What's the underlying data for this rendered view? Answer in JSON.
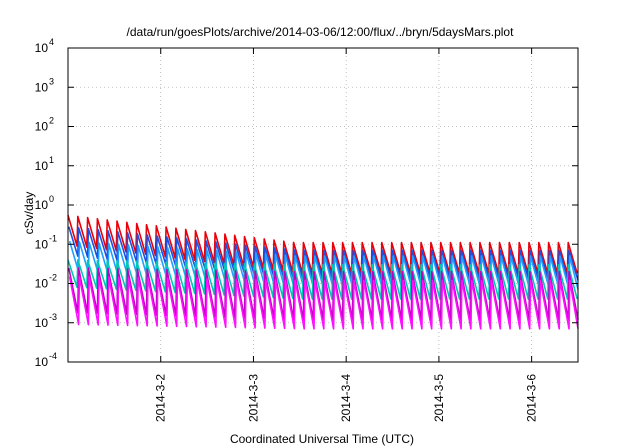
{
  "chart_data": {
    "type": "line",
    "title": "/data/run/goesPlots/archive/2014-03-06/12:00/flux/../bryn/5daysMars.plot",
    "xlabel": "Coordinated Universal Time (UTC)",
    "ylabel": "cSv/day",
    "yscale": "log",
    "ylim": [
      0.0001,
      10000
    ],
    "y_ticks": [
      {
        "base": "10",
        "exp": "-4"
      },
      {
        "base": "10",
        "exp": "-3"
      },
      {
        "base": "10",
        "exp": "-2"
      },
      {
        "base": "10",
        "exp": "-1"
      },
      {
        "base": "10",
        "exp": "0"
      },
      {
        "base": "10",
        "exp": "1"
      },
      {
        "base": "10",
        "exp": "2"
      },
      {
        "base": "10",
        "exp": "3"
      },
      {
        "base": "10",
        "exp": "4"
      }
    ],
    "xlim": [
      1.0,
      6.5
    ],
    "x_ticks": [
      {
        "label": "2014-3-2",
        "x": 2
      },
      {
        "label": "2014-3-3",
        "x": 3
      },
      {
        "label": "2014-3-4",
        "x": 4
      },
      {
        "label": "2014-3-5",
        "x": 5
      },
      {
        "label": "2014-3-6",
        "x": 6
      }
    ],
    "grid": true,
    "legend": "none",
    "series": [
      {
        "color": "#e8000b",
        "peak_start": 0.55,
        "peak_end": 0.11,
        "trough_start": 0.09,
        "trough_end": 0.018
      },
      {
        "color": "#1f4fe0",
        "peak_start": 0.28,
        "peak_end": 0.07,
        "trough_start": 0.05,
        "trough_end": 0.012
      },
      {
        "color": "#1ea0ff",
        "peak_start": 0.12,
        "peak_end": 0.05,
        "trough_start": 0.02,
        "trough_end": 0.007
      },
      {
        "color": "#00c8b4",
        "peak_start": 0.04,
        "peak_end": 0.03,
        "trough_start": 0.008,
        "trough_end": 0.004
      },
      {
        "color": "#c000c0",
        "peak_start": 0.025,
        "peak_end": 0.02,
        "trough_start": 0.0018,
        "trough_end": 0.0012
      },
      {
        "color": "#ff10ff",
        "peak_start": 0.015,
        "peak_end": 0.012,
        "trough_start": 0.0009,
        "trough_end": 0.0007
      }
    ]
  }
}
